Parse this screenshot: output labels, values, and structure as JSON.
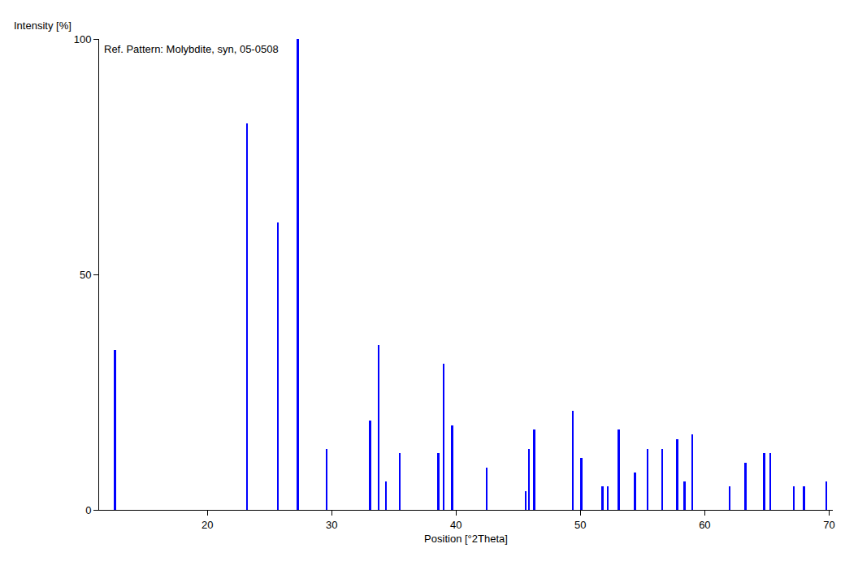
{
  "chart_data": {
    "type": "bar",
    "title": "Ref. Pattern: Molybdite, syn, 05-0508",
    "x_label": "Position [°2Theta]",
    "y_label": "Intensity [%]",
    "x": [
      12.6,
      23.2,
      25.7,
      27.3,
      29.6,
      33.1,
      33.8,
      34.4,
      35.5,
      38.6,
      39.0,
      39.7,
      42.5,
      45.6,
      45.9,
      46.3,
      49.4,
      50.1,
      51.8,
      52.2,
      53.1,
      54.4,
      55.4,
      56.6,
      57.8,
      58.4,
      59.0,
      62.0,
      63.3,
      64.8,
      65.3,
      67.2,
      68.0,
      69.8
    ],
    "values": [
      34,
      82,
      61,
      100,
      13,
      19,
      35,
      6,
      12,
      12,
      31,
      18,
      9,
      4,
      13,
      17,
      21,
      11,
      5,
      5,
      17,
      8,
      13,
      13,
      15,
      6,
      16,
      5,
      10,
      12,
      12,
      5,
      5,
      6
    ],
    "color": "#0000ff",
    "xlim": [
      11.3,
      70.3
    ],
    "xticks": [
      20,
      30,
      40,
      50,
      60,
      70
    ],
    "ylim": [
      0,
      100
    ],
    "yticks": [
      0,
      50,
      100
    ],
    "grid": false
  }
}
